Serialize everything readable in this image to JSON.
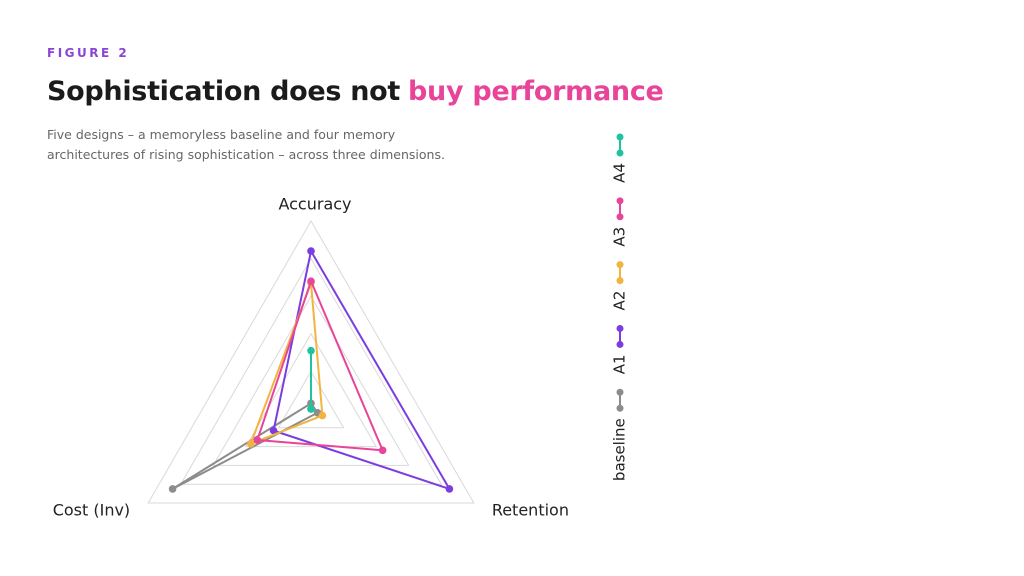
{
  "chart_data": {
    "type": "radar",
    "figure_label": "FIGURE 2",
    "title": "Sophistication does not",
    "title_highlight": "buy performance",
    "subtitle": "Five designs – a memoryless baseline and four memory architectures of rising sophistication – across three dimensions.",
    "axes": [
      "Accuracy",
      "Retention",
      "Cost (Inv)"
    ],
    "rlim": [
      0,
      1
    ],
    "rticks": [
      0.2,
      0.4,
      0.6,
      0.8,
      1.0
    ],
    "series": [
      {
        "name": "baseline",
        "color": "#8c8c8c",
        "values": [
          0.03,
          0.04,
          0.85
        ]
      },
      {
        "name": "A1",
        "color": "#7a3de0",
        "values": [
          0.84,
          0.85,
          0.23
        ]
      },
      {
        "name": "A2",
        "color": "#f2b441",
        "values": [
          0.67,
          0.07,
          0.37
        ]
      },
      {
        "name": "A3",
        "color": "#e8449a",
        "values": [
          0.68,
          0.44,
          0.33
        ]
      },
      {
        "name": "A4",
        "color": "#1fc3a0",
        "values": [
          0.31,
          0.0,
          0.0
        ]
      }
    ]
  }
}
